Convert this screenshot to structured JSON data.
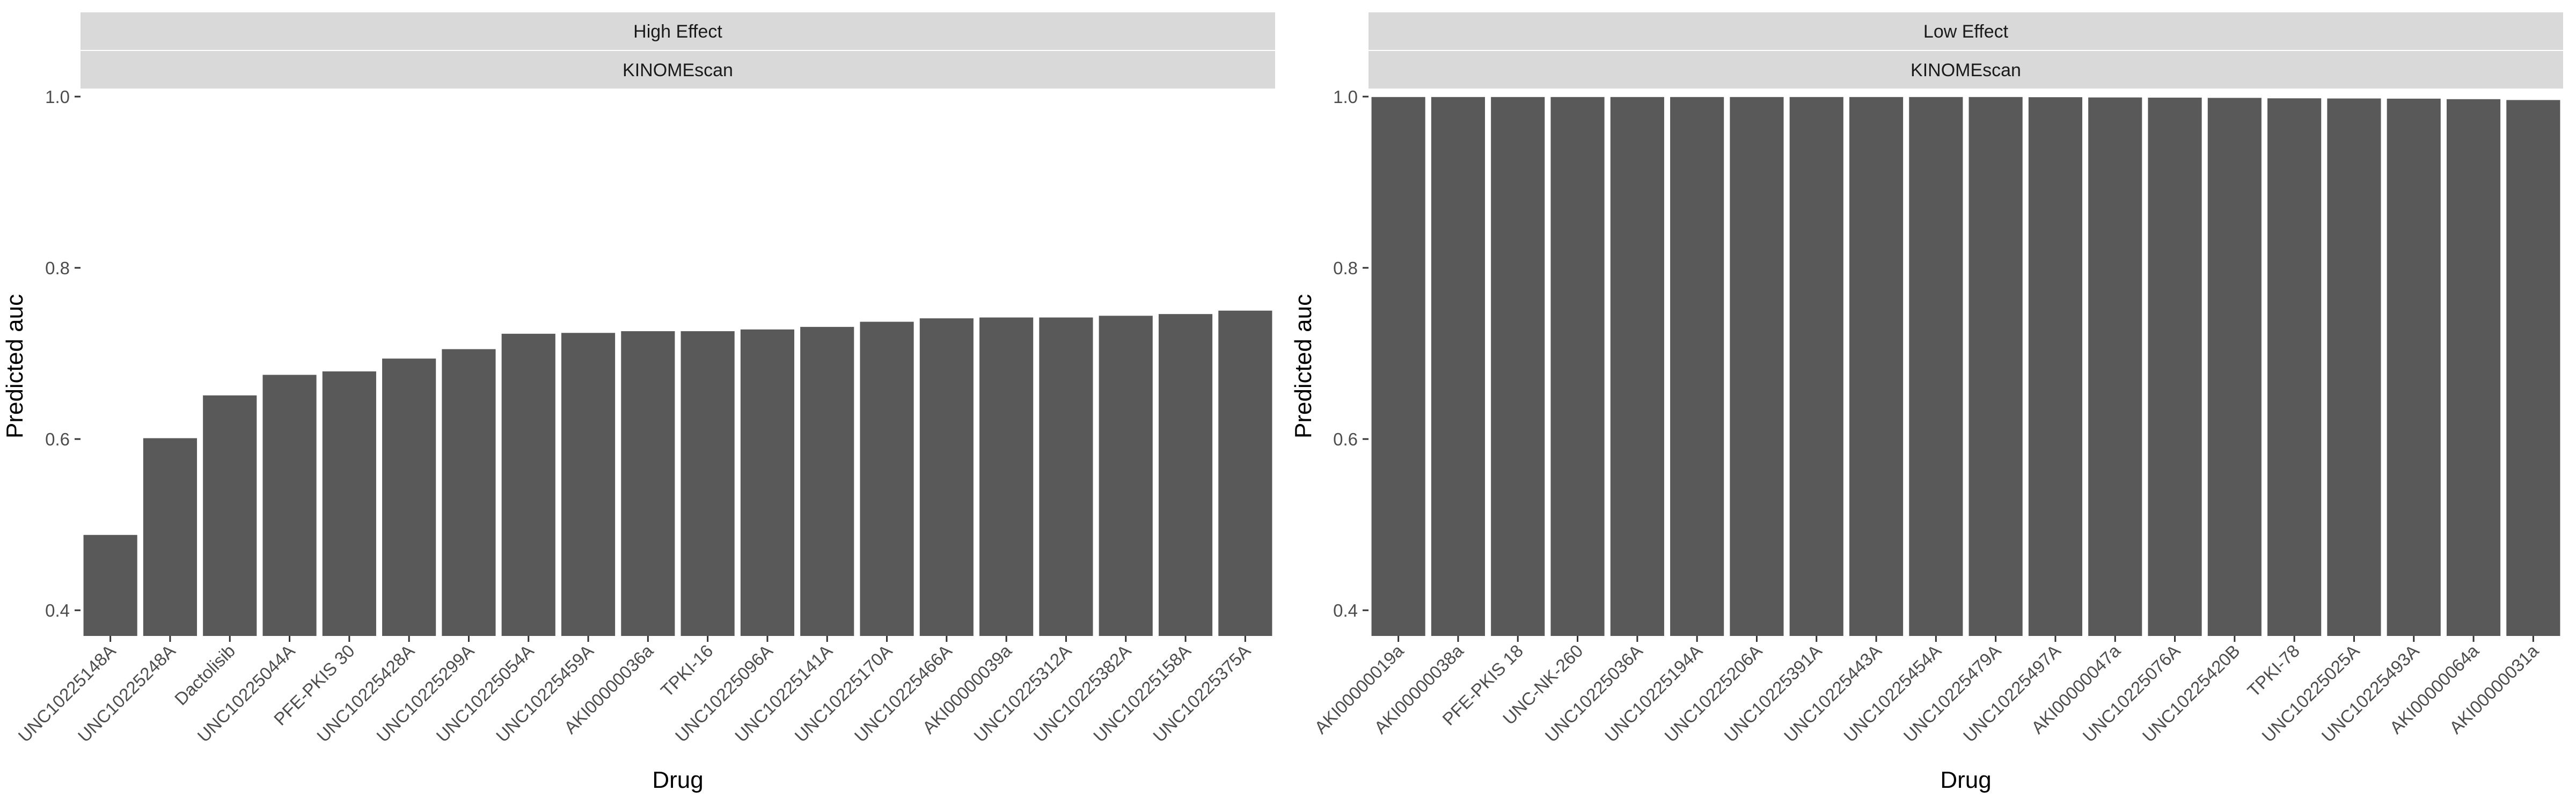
{
  "chart_data": [
    {
      "type": "bar",
      "facet": {
        "row1": "High Effect",
        "row2": "KINOMEscan"
      },
      "xlabel": "Drug",
      "ylabel": "Predicted auc",
      "ylim": [
        0.37,
        1.0
      ],
      "yticks": [
        "0.4",
        "0.6",
        "0.8",
        "1.0"
      ],
      "categories": [
        "UNC10225148A",
        "UNC10225248A",
        "Dactolisib",
        "UNC10225044A",
        "PFE-PKIS 30",
        "UNC10225428A",
        "UNC10225299A",
        "UNC10225054A",
        "UNC10225459A",
        "AKI00000036a",
        "TPKI-16",
        "UNC10225096A",
        "UNC10225141A",
        "UNC10225170A",
        "UNC10225466A",
        "AKI00000039a",
        "UNC10225312A",
        "UNC10225382A",
        "UNC10225158A",
        "UNC10225375A"
      ],
      "values": [
        0.488,
        0.601,
        0.651,
        0.675,
        0.679,
        0.694,
        0.705,
        0.723,
        0.724,
        0.726,
        0.726,
        0.728,
        0.731,
        0.737,
        0.741,
        0.742,
        0.742,
        0.744,
        0.746,
        0.75
      ],
      "grid": false,
      "bar_color": "#595959",
      "strip_color": "#d9d9d9"
    },
    {
      "type": "bar",
      "facet": {
        "row1": "Low Effect",
        "row2": "KINOMEscan"
      },
      "xlabel": "Drug",
      "ylabel": "Predicted auc",
      "ylim": [
        0.37,
        1.0
      ],
      "yticks": [
        "0.4",
        "0.6",
        "0.8",
        "1.0"
      ],
      "categories": [
        "AKI00000019a",
        "AKI00000038a",
        "PFE-PKIS 18",
        "UNC-NK-260",
        "UNC10225036A",
        "UNC10225194A",
        "UNC10225206A",
        "UNC10225391A",
        "UNC10225443A",
        "UNC10225454A",
        "UNC10225479A",
        "UNC10225497A",
        "AKI00000047a",
        "UNC10225076A",
        "UNC10225420B",
        "TPKI-78",
        "UNC10225025A",
        "UNC10225493A",
        "AKI00000064a",
        "AKI00000031a"
      ],
      "values": [
        0.9995,
        0.9995,
        0.9995,
        0.9995,
        0.9995,
        0.9995,
        0.9995,
        0.9995,
        0.9995,
        0.9995,
        0.9995,
        0.9993,
        0.999,
        0.9988,
        0.9985,
        0.998,
        0.9978,
        0.9976,
        0.997,
        0.996
      ],
      "grid": false,
      "bar_color": "#595959",
      "strip_color": "#d9d9d9"
    }
  ]
}
